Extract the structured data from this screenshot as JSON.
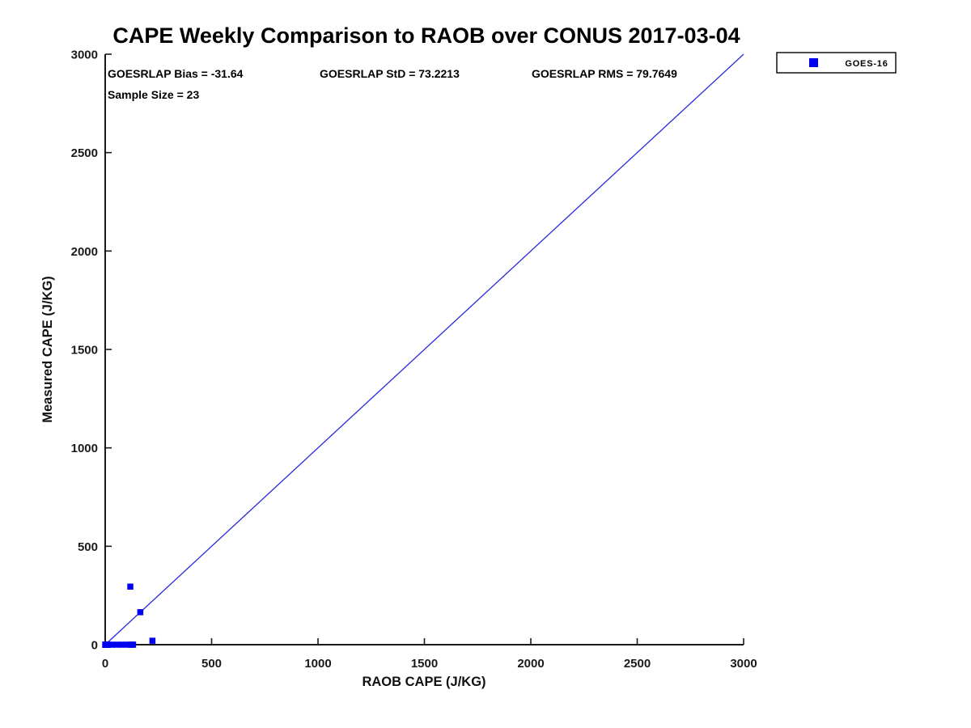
{
  "stats": {
    "bias": "GOESRLAP Bias = -31.64",
    "std": "GOESRLAP StD = 73.2213",
    "rms": "GOESRLAP RMS = 79.7649",
    "sample_size": "Sample Size = 23"
  },
  "legend": {
    "position": "top-right-outside",
    "entries": [
      {
        "label": "GOES-16",
        "marker": "square",
        "color": "#0000f0"
      }
    ]
  },
  "colors": {
    "marker": "#0000f0",
    "identity_line": "#2828dd",
    "axis": "#1a1a1a",
    "text": "#000000",
    "background": "#ffffff"
  },
  "chart_data": {
    "type": "scatter",
    "title": "CAPE Weekly Comparison to RAOB over CONUS 2017-03-04",
    "xlabel": "RAOB CAPE (J/KG)",
    "ylabel": "Measured CAPE (J/KG)",
    "xlim": [
      0,
      3000
    ],
    "ylim": [
      0,
      3000
    ],
    "xticks": [
      0,
      500,
      1000,
      1500,
      2000,
      2500,
      3000
    ],
    "yticks": [
      0,
      500,
      1000,
      1500,
      2000,
      2500,
      3000
    ],
    "grid": false,
    "legend_position": "top-right-outside",
    "statistics": {
      "bias": -31.64,
      "std": 73.2213,
      "rms": 79.7649,
      "sample_size": 23
    },
    "reference_line": {
      "type": "identity",
      "from": [
        0,
        0
      ],
      "to": [
        3000,
        3000
      ]
    },
    "series": [
      {
        "name": "GOES-16",
        "marker": "square",
        "color": "#0000f0",
        "points": [
          [
            0,
            0
          ],
          [
            1,
            0
          ],
          [
            2,
            0
          ],
          [
            3,
            0
          ],
          [
            4,
            0
          ],
          [
            5,
            0
          ],
          [
            6,
            0
          ],
          [
            7,
            0
          ],
          [
            8,
            0
          ],
          [
            9,
            0
          ],
          [
            10,
            0
          ],
          [
            12,
            0
          ],
          [
            14,
            0
          ],
          [
            30,
            0
          ],
          [
            54,
            0
          ],
          [
            78,
            0
          ],
          [
            102,
            0
          ],
          [
            120,
            0
          ],
          [
            126,
            0
          ],
          [
            131,
            0
          ],
          [
            118,
            295
          ],
          [
            165,
            165
          ],
          [
            222,
            20
          ]
        ]
      }
    ]
  }
}
